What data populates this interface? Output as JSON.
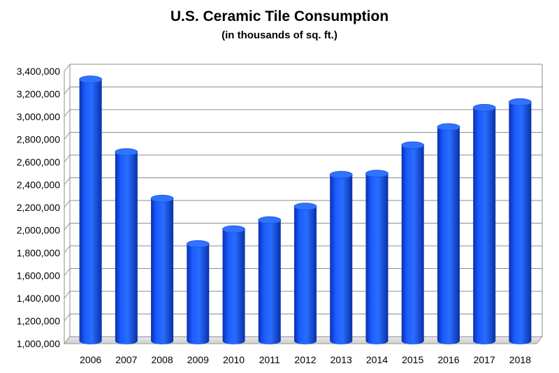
{
  "chart_data": {
    "type": "bar",
    "title": "U.S. Ceramic Tile Consumption",
    "subtitle": "(in thousands of sq. ft.)",
    "xlabel": "",
    "ylabel": "",
    "categories": [
      "2006",
      "2007",
      "2008",
      "2009",
      "2010",
      "2011",
      "2012",
      "2013",
      "2014",
      "2015",
      "2016",
      "2017",
      "2018"
    ],
    "values": [
      3310000,
      2670000,
      2260000,
      1860000,
      1990000,
      2070000,
      2190000,
      2470000,
      2480000,
      2730000,
      2890000,
      3060000,
      3110000
    ],
    "ylim": [
      1000000,
      3400000
    ],
    "yticks": [
      1000000,
      1200000,
      1400000,
      1600000,
      1800000,
      2000000,
      2200000,
      2400000,
      2600000,
      2800000,
      3000000,
      3200000,
      3400000
    ],
    "ytick_labels": [
      "1,000,000",
      "1,200,000",
      "1,400,000",
      "1,600,000",
      "1,800,000",
      "2,000,000",
      "2,200,000",
      "2,400,000",
      "2,600,000",
      "2,800,000",
      "3,000,000",
      "3,200,000",
      "3,400,000"
    ],
    "grid": true,
    "legend": "none",
    "bar_style": "3d-cylinder",
    "bar_color": "#1557f0"
  }
}
